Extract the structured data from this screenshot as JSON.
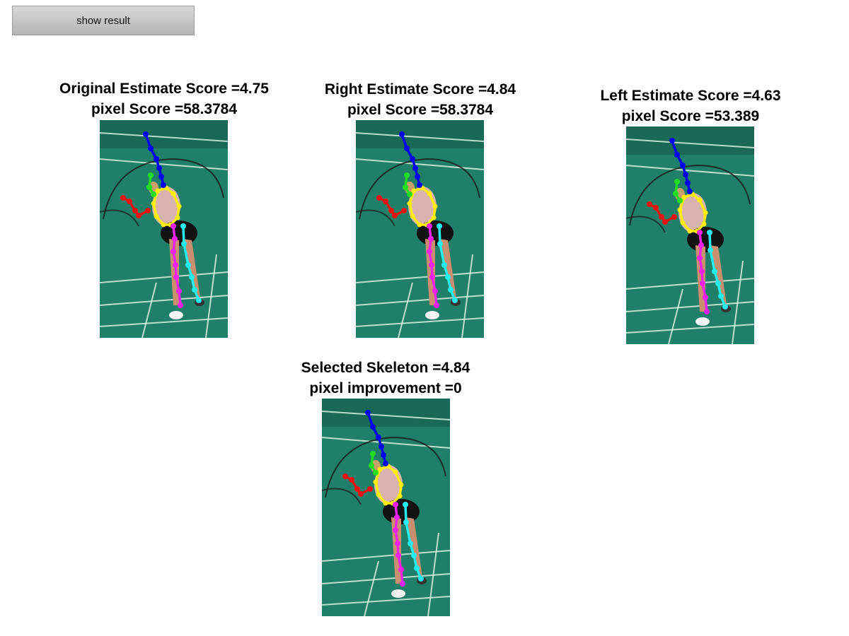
{
  "toolbar": {
    "show_result_label": "show result"
  },
  "panels": [
    {
      "id": "original",
      "line1": "Original Estimate Score =4.75",
      "line2": "pixel Score =58.3784"
    },
    {
      "id": "right",
      "line1": "Right Estimate Score =4.84",
      "line2": "pixel Score =58.3784"
    },
    {
      "id": "left",
      "line1": "Left Estimate Score =4.63",
      "line2": "pixel Score =53.389"
    },
    {
      "id": "selected",
      "line1": "Selected Skeleton =4.84",
      "line2": "pixel improvement =0"
    }
  ],
  "colors": {
    "court": "#1f7f68",
    "court_dark": "#17604f",
    "head": "#0000ee",
    "right_arm": "#ee1111",
    "left_arm": "#22dd22",
    "torso": "#ffee00",
    "right_leg": "#ee22ee",
    "left_leg": "#22eeee"
  }
}
